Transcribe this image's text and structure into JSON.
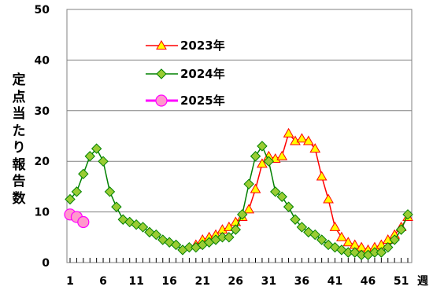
{
  "chart_data": {
    "type": "line",
    "ylabel": "定点当たり報告数",
    "xlabel": "週",
    "xlim": [
      1,
      52
    ],
    "ylim": [
      0,
      50
    ],
    "yticks": [
      0,
      10,
      20,
      30,
      40,
      50
    ],
    "xticks": [
      1,
      6,
      11,
      16,
      21,
      26,
      31,
      36,
      41,
      46,
      51
    ],
    "grid": "horizontal",
    "legend": "upper-left inside plot",
    "series": [
      {
        "name": "2023年",
        "color": "#ff0000",
        "marker": "triangle",
        "marker_fill": "#ffff00",
        "x": [
          20,
          21,
          22,
          23,
          24,
          25,
          26,
          27,
          28,
          29,
          30,
          31,
          32,
          33,
          34,
          35,
          36,
          37,
          38,
          39,
          40,
          41,
          42,
          43,
          44,
          45,
          46,
          47,
          48,
          49,
          50,
          51,
          52
        ],
        "values": [
          3.5,
          4.5,
          5.0,
          5.5,
          6.5,
          7.0,
          8.0,
          9.0,
          10.5,
          14.5,
          19.5,
          21.0,
          20.5,
          21.0,
          25.5,
          24.0,
          24.5,
          24.0,
          22.5,
          17.0,
          12.5,
          7.0,
          5.0,
          4.0,
          3.5,
          3.0,
          2.5,
          3.0,
          3.5,
          4.5,
          5.5,
          7.0,
          9.0
        ]
      },
      {
        "name": "2024年",
        "color": "#008000",
        "marker": "diamond",
        "marker_fill": "#99cc33",
        "x": [
          1,
          2,
          3,
          4,
          5,
          6,
          7,
          8,
          9,
          10,
          11,
          12,
          13,
          14,
          15,
          16,
          17,
          18,
          19,
          20,
          21,
          22,
          23,
          24,
          25,
          26,
          27,
          28,
          29,
          30,
          31,
          32,
          33,
          34,
          35,
          36,
          37,
          38,
          39,
          40,
          41,
          42,
          43,
          44,
          45,
          46,
          47,
          48,
          49,
          50,
          51,
          52
        ],
        "values": [
          12.5,
          14.0,
          17.5,
          21.0,
          22.5,
          20.0,
          14.0,
          11.0,
          8.5,
          8.0,
          7.5,
          7.0,
          6.0,
          5.5,
          4.5,
          4.0,
          3.5,
          2.5,
          3.0,
          3.0,
          3.5,
          4.0,
          4.5,
          5.0,
          5.0,
          6.5,
          9.5,
          15.5,
          21.0,
          23.0,
          20.0,
          14.0,
          13.0,
          11.0,
          8.5,
          7.0,
          6.0,
          5.5,
          4.5,
          3.5,
          3.0,
          2.5,
          2.0,
          2.0,
          1.5,
          1.5,
          2.0,
          2.0,
          3.0,
          4.5,
          6.5,
          9.5
        ]
      },
      {
        "name": "2025年",
        "color": "#ff00ff",
        "marker": "circle",
        "marker_fill": "#ff99cc",
        "x": [
          1,
          2,
          3
        ],
        "values": [
          9.5,
          9.0,
          8.0
        ]
      }
    ]
  }
}
